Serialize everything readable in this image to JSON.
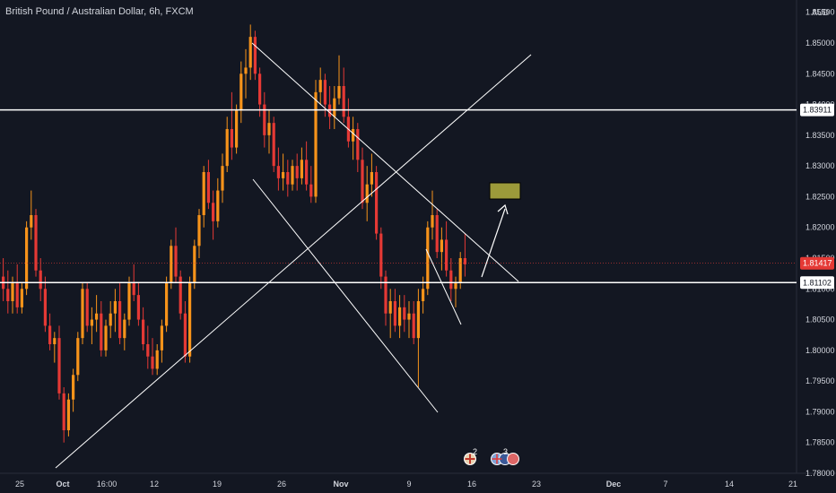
{
  "header": {
    "title": "British Pound / Australian Dollar, 6h, FXCM",
    "currency": "AUD"
  },
  "colors": {
    "background": "#131722",
    "candle_up": "#f7931a",
    "candle_down": "#e53935",
    "lines": "#ffffff",
    "target_box": "#9c9a3a",
    "current_price_tag": "#e53935",
    "axis_text": "#d1d4dc"
  },
  "price_axis": {
    "ticks": [
      "1.85500",
      "1.85000",
      "1.84500",
      "1.84000",
      "1.83500",
      "1.83000",
      "1.82500",
      "1.82000",
      "1.81500",
      "1.81000",
      "1.80500",
      "1.80000",
      "1.79500",
      "1.79000",
      "1.78500",
      "1.78000"
    ],
    "tick_values": [
      1.855,
      1.85,
      1.845,
      1.84,
      1.835,
      1.83,
      1.825,
      1.82,
      1.815,
      1.81,
      1.805,
      1.8,
      1.795,
      1.79,
      1.785,
      1.78
    ]
  },
  "time_axis": {
    "labels": [
      "25",
      "Oct",
      "16:00",
      "12",
      "19",
      "26",
      "Nov",
      "9",
      "16",
      "23",
      "Dec",
      "7",
      "14",
      "21"
    ],
    "bold": [
      "Oct",
      "Nov",
      "Dec"
    ]
  },
  "price_tags": [
    {
      "label": "1.83911",
      "value": 1.83911,
      "type": "line"
    },
    {
      "label": "1.81417",
      "value": 1.81417,
      "type": "current"
    },
    {
      "label": "1.81102",
      "value": 1.81102,
      "type": "line"
    }
  ],
  "drawings": {
    "horizontal_levels": [
      1.83911,
      1.81102
    ],
    "current_price": 1.81417
  },
  "event_icons": {
    "group1_count": "2",
    "group2_count": "3"
  },
  "chart_data": {
    "type": "candlestick",
    "symbol": "British Pound / Australian Dollar",
    "interval": "6h",
    "ylim": [
      1.78,
      1.857
    ],
    "candles": [
      [
        1.812,
        1.815,
        1.808,
        1.81
      ],
      [
        1.81,
        1.813,
        1.806,
        1.808
      ],
      [
        1.808,
        1.812,
        1.806,
        1.811
      ],
      [
        1.811,
        1.814,
        1.806,
        1.807
      ],
      [
        1.807,
        1.811,
        1.806,
        1.81
      ],
      [
        1.81,
        1.821,
        1.809,
        1.82
      ],
      [
        1.82,
        1.826,
        1.818,
        1.822
      ],
      [
        1.822,
        1.823,
        1.812,
        1.813
      ],
      [
        1.813,
        1.815,
        1.808,
        1.81
      ],
      [
        1.81,
        1.812,
        1.803,
        1.804
      ],
      [
        1.804,
        1.806,
        1.8,
        1.801
      ],
      [
        1.801,
        1.803,
        1.798,
        1.802
      ],
      [
        1.802,
        1.804,
        1.792,
        1.793
      ],
      [
        1.793,
        1.794,
        1.785,
        1.787
      ],
      [
        1.787,
        1.793,
        1.786,
        1.792
      ],
      [
        1.792,
        1.797,
        1.79,
        1.796
      ],
      [
        1.796,
        1.803,
        1.795,
        1.802
      ],
      [
        1.802,
        1.811,
        1.801,
        1.81
      ],
      [
        1.81,
        1.811,
        1.803,
        1.804
      ],
      [
        1.804,
        1.807,
        1.801,
        1.805
      ],
      [
        1.805,
        1.809,
        1.803,
        1.806
      ],
      [
        1.806,
        1.808,
        1.799,
        1.8
      ],
      [
        1.8,
        1.805,
        1.799,
        1.804
      ],
      [
        1.804,
        1.808,
        1.802,
        1.806
      ],
      [
        1.806,
        1.81,
        1.803,
        1.808
      ],
      [
        1.808,
        1.811,
        1.801,
        1.802
      ],
      [
        1.802,
        1.806,
        1.8,
        1.805
      ],
      [
        1.805,
        1.812,
        1.804,
        1.811
      ],
      [
        1.811,
        1.814,
        1.808,
        1.809
      ],
      [
        1.809,
        1.811,
        1.804,
        1.805
      ],
      [
        1.805,
        1.807,
        1.8,
        1.801
      ],
      [
        1.801,
        1.804,
        1.797,
        1.799
      ],
      [
        1.799,
        1.802,
        1.796,
        1.797
      ],
      [
        1.797,
        1.801,
        1.796,
        1.8
      ],
      [
        1.8,
        1.805,
        1.798,
        1.804
      ],
      [
        1.804,
        1.812,
        1.803,
        1.811
      ],
      [
        1.811,
        1.818,
        1.81,
        1.817
      ],
      [
        1.817,
        1.82,
        1.811,
        1.812
      ],
      [
        1.812,
        1.813,
        1.805,
        1.806
      ],
      [
        1.806,
        1.808,
        1.798,
        1.799
      ],
      [
        1.799,
        1.812,
        1.798,
        1.811
      ],
      [
        1.811,
        1.818,
        1.81,
        1.817
      ],
      [
        1.817,
        1.823,
        1.815,
        1.822
      ],
      [
        1.822,
        1.83,
        1.82,
        1.829
      ],
      [
        1.829,
        1.831,
        1.823,
        1.824
      ],
      [
        1.824,
        1.826,
        1.818,
        1.821
      ],
      [
        1.821,
        1.828,
        1.82,
        1.826
      ],
      [
        1.826,
        1.832,
        1.824,
        1.83
      ],
      [
        1.83,
        1.838,
        1.829,
        1.836
      ],
      [
        1.836,
        1.842,
        1.831,
        1.833
      ],
      [
        1.833,
        1.84,
        1.832,
        1.839
      ],
      [
        1.839,
        1.847,
        1.837,
        1.845
      ],
      [
        1.845,
        1.849,
        1.841,
        1.846
      ],
      [
        1.846,
        1.853,
        1.844,
        1.851
      ],
      [
        1.851,
        1.852,
        1.844,
        1.845
      ],
      [
        1.845,
        1.846,
        1.838,
        1.84
      ],
      [
        1.84,
        1.842,
        1.833,
        1.835
      ],
      [
        1.835,
        1.839,
        1.832,
        1.837
      ],
      [
        1.837,
        1.838,
        1.829,
        1.83
      ],
      [
        1.83,
        1.833,
        1.826,
        1.828
      ],
      [
        1.828,
        1.832,
        1.826,
        1.829
      ],
      [
        1.829,
        1.831,
        1.825,
        1.827
      ],
      [
        1.827,
        1.831,
        1.826,
        1.83
      ],
      [
        1.83,
        1.832,
        1.826,
        1.828
      ],
      [
        1.828,
        1.833,
        1.827,
        1.831
      ],
      [
        1.831,
        1.834,
        1.826,
        1.827
      ],
      [
        1.827,
        1.83,
        1.824,
        1.825
      ],
      [
        1.825,
        1.844,
        1.824,
        1.842
      ],
      [
        1.842,
        1.846,
        1.84,
        1.844
      ],
      [
        1.844,
        1.845,
        1.838,
        1.84
      ],
      [
        1.84,
        1.843,
        1.836,
        1.838
      ],
      [
        1.838,
        1.843,
        1.836,
        1.841
      ],
      [
        1.841,
        1.848,
        1.84,
        1.843
      ],
      [
        1.843,
        1.846,
        1.837,
        1.838
      ],
      [
        1.838,
        1.841,
        1.833,
        1.834
      ],
      [
        1.834,
        1.838,
        1.831,
        1.836
      ],
      [
        1.836,
        1.837,
        1.829,
        1.831
      ],
      [
        1.831,
        1.833,
        1.823,
        1.824
      ],
      [
        1.824,
        1.83,
        1.821,
        1.827
      ],
      [
        1.827,
        1.832,
        1.825,
        1.829
      ],
      [
        1.829,
        1.83,
        1.818,
        1.819
      ],
      [
        1.819,
        1.82,
        1.81,
        1.812
      ],
      [
        1.812,
        1.813,
        1.804,
        1.806
      ],
      [
        1.806,
        1.81,
        1.802,
        1.808
      ],
      [
        1.808,
        1.81,
        1.803,
        1.804
      ],
      [
        1.804,
        1.809,
        1.802,
        1.807
      ],
      [
        1.807,
        1.809,
        1.803,
        1.805
      ],
      [
        1.805,
        1.808,
        1.802,
        1.806
      ],
      [
        1.806,
        1.808,
        1.801,
        1.802
      ],
      [
        1.802,
        1.81,
        1.794,
        1.808
      ],
      [
        1.808,
        1.812,
        1.806,
        1.81
      ],
      [
        1.81,
        1.821,
        1.809,
        1.82
      ],
      [
        1.82,
        1.826,
        1.818,
        1.822
      ],
      [
        1.822,
        1.823,
        1.815,
        1.816
      ],
      [
        1.816,
        1.82,
        1.813,
        1.818
      ],
      [
        1.818,
        1.821,
        1.812,
        1.813
      ],
      [
        1.813,
        1.815,
        1.808,
        1.81
      ],
      [
        1.81,
        1.812,
        1.807,
        1.811
      ],
      [
        1.811,
        1.816,
        1.81,
        1.815
      ],
      [
        1.815,
        1.819,
        1.812,
        1.814
      ]
    ],
    "levels": [
      {
        "name": "resistance",
        "price": 1.83911
      },
      {
        "name": "support",
        "price": 1.81102
      }
    ]
  }
}
